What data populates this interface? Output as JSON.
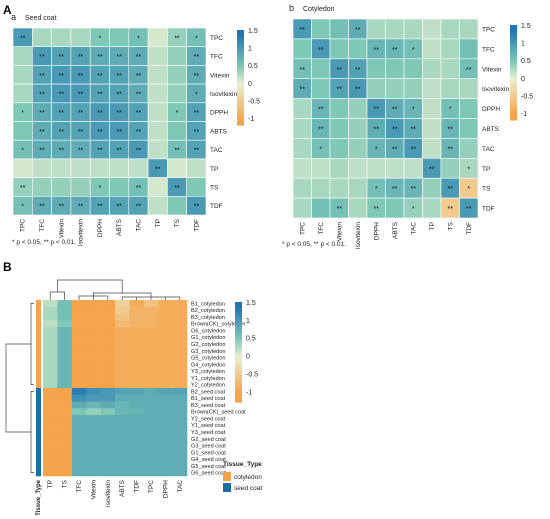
{
  "figure": {
    "panel_A": "A",
    "panel_B": "B"
  },
  "chart_data": [
    {
      "id": "seed_coat",
      "type": "heatmap",
      "sublabel": "a",
      "title": "Seed coat",
      "rows": [
        "TPC",
        "TFC",
        "Vitexin",
        "Isovitexin",
        "DPPH",
        "ABTS",
        "TAC",
        "TP",
        "TS",
        "TDF"
      ],
      "cols": [
        "TPC",
        "TFC",
        "Vitexin",
        "Isovitexin",
        "DPPH",
        "ABTS",
        "TAC",
        "TP",
        "TS",
        "TDF"
      ],
      "values": [
        [
          1.0,
          0.3,
          0.3,
          0.3,
          0.5,
          0.5,
          0.6,
          0.1,
          0.4,
          0.6
        ],
        [
          0.3,
          1.0,
          0.9,
          0.9,
          0.8,
          0.8,
          0.8,
          0.2,
          0.4,
          0.8
        ],
        [
          0.3,
          0.9,
          1.0,
          1.0,
          0.9,
          0.9,
          0.8,
          0.2,
          0.4,
          0.8
        ],
        [
          0.3,
          0.9,
          1.0,
          1.0,
          0.9,
          0.9,
          0.8,
          0.2,
          0.4,
          0.8
        ],
        [
          0.5,
          0.8,
          0.9,
          0.9,
          1.0,
          1.0,
          0.9,
          0.2,
          0.5,
          0.9
        ],
        [
          0.5,
          0.8,
          0.9,
          0.9,
          1.0,
          1.0,
          0.9,
          0.2,
          0.5,
          0.9
        ],
        [
          0.6,
          0.8,
          0.8,
          0.8,
          0.9,
          0.9,
          1.0,
          0.2,
          0.6,
          0.9
        ],
        [
          0.1,
          0.2,
          0.2,
          0.2,
          0.2,
          0.2,
          0.2,
          1.0,
          0.1,
          0.2
        ],
        [
          0.4,
          0.4,
          0.4,
          0.4,
          0.5,
          0.5,
          0.6,
          0.1,
          1.0,
          0.5
        ],
        [
          0.6,
          0.8,
          0.8,
          0.8,
          0.9,
          0.9,
          0.9,
          0.2,
          0.5,
          1.0
        ]
      ],
      "stars": [
        [
          "**",
          "",
          "",
          "",
          "*",
          "",
          "*",
          "",
          "**",
          "*"
        ],
        [
          "",
          "**",
          "**",
          "**",
          "**",
          "**",
          "**",
          "",
          "",
          "**"
        ],
        [
          "",
          "**",
          "**",
          "**",
          "**",
          "**",
          "**",
          "",
          "",
          "**"
        ],
        [
          "",
          "**",
          "**",
          "**",
          "**",
          "**",
          "**",
          "",
          "",
          "*"
        ],
        [
          "*",
          "**",
          "**",
          "**",
          "**",
          "**",
          "**",
          "",
          "*",
          "**"
        ],
        [
          "",
          "**",
          "**",
          "**",
          "**",
          "**",
          "**",
          "",
          "",
          "**"
        ],
        [
          "*",
          "**",
          "**",
          "**",
          "**",
          "**",
          "**",
          "",
          "**",
          "**"
        ],
        [
          "",
          "",
          "",
          "",
          "",
          "",
          "",
          "**",
          "",
          ""
        ],
        [
          "**",
          "",
          "",
          "",
          "*",
          "",
          "**",
          "",
          "**",
          ""
        ],
        [
          "*",
          "**",
          "**",
          "**",
          "**",
          "**",
          "**",
          "",
          "",
          "**"
        ]
      ],
      "legend": {
        "ticks": [
          "1.5",
          "1",
          "0.5",
          "0",
          "-0.5",
          "-1"
        ],
        "max": 1.5,
        "min": -1.2
      },
      "footnote": "* p < 0.05, ** p < 0.01."
    },
    {
      "id": "cotyledon",
      "type": "heatmap",
      "sublabel": "b",
      "title": "Cotyledon",
      "rows": [
        "TPC",
        "TFC",
        "Vitexin",
        "Isovitexin",
        "DPPH",
        "ABTS",
        "TAC",
        "TP",
        "TS",
        "TDF"
      ],
      "cols": [
        "TPC",
        "TFC",
        "Vitexin",
        "Isovitexin",
        "DPPH",
        "ABTS",
        "TAC",
        "TP",
        "TS",
        "TDF"
      ],
      "values": [
        [
          1.0,
          0.5,
          0.6,
          0.8,
          0.3,
          0.3,
          0.3,
          0.2,
          0.3,
          0.3
        ],
        [
          0.5,
          1.0,
          0.5,
          0.5,
          0.7,
          0.7,
          0.6,
          0.2,
          0.3,
          0.6
        ],
        [
          0.6,
          0.5,
          1.0,
          0.9,
          0.5,
          0.5,
          0.5,
          0.3,
          0.3,
          0.6
        ],
        [
          0.8,
          0.5,
          0.9,
          1.0,
          0.4,
          0.4,
          0.4,
          0.2,
          0.3,
          0.3
        ],
        [
          0.3,
          0.7,
          0.5,
          0.4,
          1.0,
          0.8,
          0.7,
          0.2,
          0.6,
          0.5
        ],
        [
          0.3,
          0.7,
          0.5,
          0.4,
          0.8,
          1.0,
          0.8,
          0.2,
          0.7,
          0.5
        ],
        [
          0.3,
          0.6,
          0.5,
          0.4,
          0.7,
          0.8,
          1.0,
          0.2,
          0.7,
          0.4
        ],
        [
          0.2,
          0.2,
          0.3,
          0.2,
          0.2,
          0.2,
          0.2,
          1.0,
          0.4,
          0.3
        ],
        [
          0.3,
          0.3,
          0.3,
          0.3,
          0.6,
          0.7,
          0.7,
          0.4,
          1.0,
          -0.5
        ],
        [
          0.3,
          0.6,
          0.6,
          0.3,
          0.5,
          0.5,
          0.4,
          0.3,
          -0.5,
          1.0
        ]
      ],
      "stars": [
        [
          "**",
          "",
          "",
          "**",
          "",
          "",
          "",
          "",
          "",
          ""
        ],
        [
          "",
          "**",
          "",
          "",
          "**",
          "**",
          "*",
          "",
          "",
          ""
        ],
        [
          "**",
          "",
          "**",
          "**",
          "",
          "",
          "",
          "",
          "",
          "**"
        ],
        [
          "**",
          "",
          "**",
          "**",
          "",
          "",
          "",
          "",
          "",
          ""
        ],
        [
          "",
          "**",
          "",
          "",
          "**",
          "**",
          "*",
          "",
          "*",
          ""
        ],
        [
          "",
          "**",
          "",
          "",
          "**",
          "**",
          "**",
          "",
          "**",
          ""
        ],
        [
          "",
          "*",
          "",
          "",
          "*",
          "**",
          "**",
          "",
          "**",
          ""
        ],
        [
          "",
          "",
          "",
          "",
          "",
          "",
          "",
          "**",
          "",
          "*"
        ],
        [
          "",
          "",
          "",
          "",
          "*",
          "**",
          "**",
          "",
          "**",
          "*"
        ],
        [
          "",
          "",
          "**",
          "",
          "**",
          "",
          "*",
          "",
          "**",
          "**"
        ]
      ],
      "legend": {
        "ticks": [
          "1.5",
          "1",
          "0.5",
          "0",
          "-0.5",
          "-1"
        ],
        "max": 1.5,
        "min": -1.2
      },
      "footnote": "* p < 0.05, ** p < 0.01."
    },
    {
      "id": "clustered",
      "type": "heatmap",
      "rows": [
        "B1_cotyledon",
        "B2_cotyledon",
        "B3_cotyledon",
        "Brown(CK)_cotyledon",
        "G6_cotyledon",
        "G1_cotyledon",
        "G2_cotyledon",
        "G3_cotyledon",
        "G5_cotyledon",
        "G4_cotyledon",
        "Y3_cotyledon",
        "Y1_cotyledon",
        "Y2_cotyledon",
        "B2_seed coat",
        "B1_seed coat",
        "B3_seed coat",
        "Brown(CK)_seed coat",
        "Y2_seed coat",
        "Y1_seed coat",
        "Y3_seed coat",
        "G2_seed coat",
        "G3_seed coat",
        "G1_seed coat",
        "G4_seed coat",
        "G5_seed coat",
        "G6_seed coat"
      ],
      "cols": [
        "TP",
        "TS",
        "TFC",
        "Vitexin",
        "Isovitexin",
        "ABTS",
        "TDF",
        "TPC",
        "DPPH",
        "TAC"
      ],
      "values": [
        [
          0.2,
          0.6,
          -1.1,
          -1.1,
          -1.1,
          -0.4,
          -0.9,
          -0.6,
          -0.9,
          -0.9
        ],
        [
          0.3,
          0.6,
          -1.1,
          -1.1,
          -1.1,
          -0.5,
          -0.8,
          -0.8,
          -0.9,
          -0.9
        ],
        [
          0.3,
          0.6,
          -1.1,
          -1.1,
          -1.1,
          -0.6,
          -0.8,
          -0.8,
          -0.9,
          -0.9
        ],
        [
          0.2,
          0.5,
          -1.1,
          -1.1,
          -1.1,
          -0.7,
          -0.8,
          -0.8,
          -0.9,
          -0.9
        ],
        [
          0.3,
          0.7,
          -1.1,
          -1.1,
          -1.1,
          -0.9,
          -0.9,
          -0.9,
          -0.9,
          -0.9
        ],
        [
          0.3,
          0.7,
          -1.1,
          -1.1,
          -1.1,
          -0.9,
          -0.9,
          -0.9,
          -0.9,
          -0.9
        ],
        [
          0.3,
          0.7,
          -1.1,
          -1.1,
          -1.1,
          -0.9,
          -0.9,
          -0.9,
          -0.9,
          -0.9
        ],
        [
          0.3,
          0.7,
          -1.1,
          -1.1,
          -1.1,
          -0.9,
          -0.9,
          -0.9,
          -0.9,
          -0.9
        ],
        [
          0.3,
          0.7,
          -1.1,
          -1.1,
          -1.1,
          -0.9,
          -0.9,
          -0.9,
          -0.9,
          -0.9
        ],
        [
          0.3,
          0.7,
          -1.1,
          -1.1,
          -1.1,
          -0.9,
          -0.9,
          -0.9,
          -0.9,
          -0.9
        ],
        [
          0.3,
          0.7,
          -1.1,
          -1.1,
          -1.1,
          -0.9,
          -0.9,
          -0.9,
          -0.9,
          -0.9
        ],
        [
          0.3,
          0.7,
          -1.1,
          -1.1,
          -1.1,
          -0.9,
          -0.9,
          -0.9,
          -0.9,
          -0.9
        ],
        [
          0.3,
          0.7,
          -1.1,
          -1.1,
          -1.1,
          -0.9,
          -0.9,
          -0.9,
          -0.9,
          -0.9
        ],
        [
          -1.1,
          -1.1,
          1.3,
          1.1,
          1.0,
          0.9,
          0.9,
          0.8,
          0.9,
          0.9
        ],
        [
          -1.1,
          -1.1,
          1.1,
          1.0,
          1.0,
          0.8,
          0.8,
          0.8,
          0.8,
          0.8
        ],
        [
          -1.1,
          -1.1,
          0.8,
          0.7,
          0.8,
          0.7,
          0.8,
          0.8,
          0.8,
          0.8
        ],
        [
          -1.1,
          -1.1,
          0.5,
          0.4,
          0.5,
          0.7,
          0.7,
          0.8,
          0.8,
          0.8
        ],
        [
          -1.1,
          -1.1,
          0.8,
          0.8,
          0.8,
          0.8,
          0.8,
          0.8,
          0.8,
          0.8
        ],
        [
          -1.1,
          -1.1,
          0.8,
          0.8,
          0.8,
          0.8,
          0.8,
          0.8,
          0.8,
          0.8
        ],
        [
          -1.1,
          -1.1,
          0.8,
          0.8,
          0.8,
          0.8,
          0.8,
          0.8,
          0.8,
          0.8
        ],
        [
          -1.1,
          -1.1,
          0.8,
          0.8,
          0.8,
          0.8,
          0.8,
          0.8,
          0.8,
          0.8
        ],
        [
          -1.1,
          -1.1,
          0.8,
          0.8,
          0.8,
          0.8,
          0.8,
          0.8,
          0.8,
          0.8
        ],
        [
          -1.1,
          -1.1,
          0.8,
          0.8,
          0.8,
          0.8,
          0.8,
          0.8,
          0.8,
          0.8
        ],
        [
          -1.1,
          -1.1,
          0.8,
          0.8,
          0.8,
          0.8,
          0.8,
          0.8,
          0.8,
          0.8
        ],
        [
          -1.1,
          -1.1,
          0.8,
          0.8,
          0.8,
          0.8,
          0.8,
          0.8,
          0.8,
          0.8
        ],
        [
          -1.1,
          -1.1,
          0.8,
          0.8,
          0.8,
          0.8,
          0.8,
          0.8,
          0.8,
          0.8
        ]
      ],
      "annotation_label": "Tissue_Type",
      "row_tissue": [
        "cotyledon",
        "cotyledon",
        "cotyledon",
        "cotyledon",
        "cotyledon",
        "cotyledon",
        "cotyledon",
        "cotyledon",
        "cotyledon",
        "cotyledon",
        "cotyledon",
        "cotyledon",
        "cotyledon",
        "seed coat",
        "seed coat",
        "seed coat",
        "seed coat",
        "seed coat",
        "seed coat",
        "seed coat",
        "seed coat",
        "seed coat",
        "seed coat",
        "seed coat",
        "seed coat",
        "seed coat"
      ],
      "legend": {
        "ticks": [
          "1.5",
          "1",
          "0.5",
          "0",
          "-0.5",
          "-1"
        ],
        "max": 1.5,
        "min": -1.3
      },
      "tissue_legend": {
        "title": "Tissue_Type",
        "items": [
          {
            "label": "cotyledon",
            "color": "#f4a24c"
          },
          {
            "label": "seed coat",
            "color": "#1a6ea8"
          }
        ]
      }
    }
  ],
  "colors": {
    "high": "#1f74b4",
    "mid": "#7fc8b6",
    "zero": "#e9f0d2",
    "low": "#f6a44c"
  }
}
